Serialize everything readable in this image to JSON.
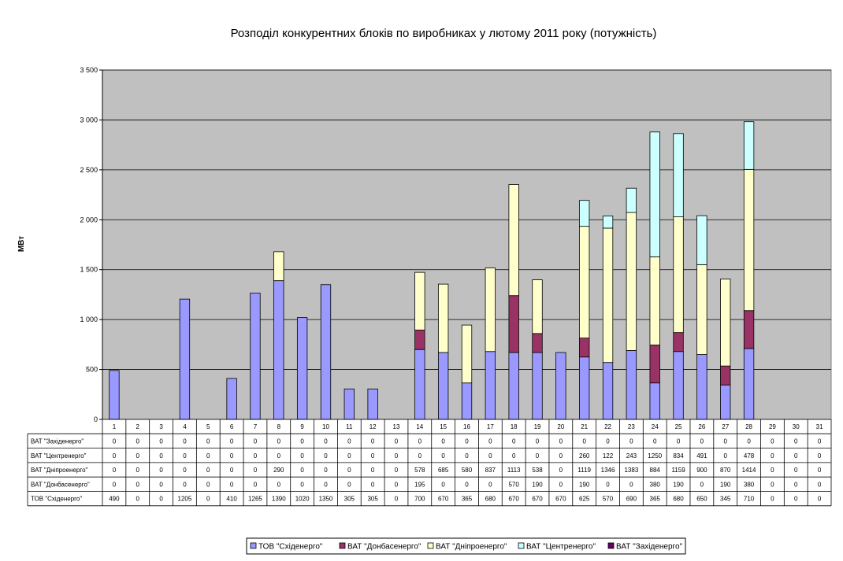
{
  "chart_data": {
    "type": "bar",
    "stacked": true,
    "title": "Розподіл конкурентних блоків по виробниках у лютому 2011 року (потужність)",
    "ylabel": "МВт",
    "ylim": [
      0,
      3500
    ],
    "yticks": [
      0,
      500,
      1000,
      1500,
      2000,
      2500,
      3000,
      3500
    ],
    "ytick_labels": [
      "0",
      "500",
      "1 000",
      "1 500",
      "2 000",
      "2 500",
      "3 000",
      "3 500"
    ],
    "grid": true,
    "legend_position": "bottom",
    "plot_background": "#c0c0c0",
    "categories": [
      "1",
      "2",
      "3",
      "4",
      "5",
      "6",
      "7",
      "8",
      "9",
      "10",
      "11",
      "12",
      "13",
      "14",
      "15",
      "16",
      "17",
      "18",
      "19",
      "20",
      "21",
      "22",
      "23",
      "24",
      "25",
      "26",
      "27",
      "28",
      "29",
      "30",
      "31"
    ],
    "series": [
      {
        "name": "ТОВ \"Східенерго\"",
        "color": "#9999ff",
        "values": [
          490,
          0,
          0,
          1205,
          0,
          410,
          1265,
          1390,
          1020,
          1350,
          305,
          305,
          0,
          700,
          670,
          365,
          680,
          670,
          670,
          670,
          625,
          570,
          690,
          365,
          680,
          650,
          345,
          710,
          0,
          0,
          0
        ]
      },
      {
        "name": "ВАТ \"Донбасенерго\"",
        "color": "#993366",
        "values": [
          0,
          0,
          0,
          0,
          0,
          0,
          0,
          0,
          0,
          0,
          0,
          0,
          0,
          195,
          0,
          0,
          0,
          570,
          190,
          0,
          190,
          0,
          0,
          380,
          190,
          0,
          190,
          380,
          0,
          0,
          0
        ]
      },
      {
        "name": "ВАТ \"Дніпроенерго\"",
        "color": "#ffffcc",
        "values": [
          0,
          0,
          0,
          0,
          0,
          0,
          0,
          290,
          0,
          0,
          0,
          0,
          0,
          578,
          685,
          580,
          837,
          1113,
          538,
          0,
          1119,
          1346,
          1383,
          884,
          1159,
          900,
          870,
          1414,
          0,
          0,
          0
        ]
      },
      {
        "name": "ВАТ \"Центренерго\"",
        "color": "#ccffff",
        "values": [
          0,
          0,
          0,
          0,
          0,
          0,
          0,
          0,
          0,
          0,
          0,
          0,
          0,
          0,
          0,
          0,
          0,
          0,
          0,
          0,
          260,
          122,
          243,
          1250,
          834,
          491,
          0,
          478,
          0,
          0,
          0
        ]
      },
      {
        "name": "ВАТ \"Західенерго\"",
        "color": "#660066",
        "values": [
          0,
          0,
          0,
          0,
          0,
          0,
          0,
          0,
          0,
          0,
          0,
          0,
          0,
          0,
          0,
          0,
          0,
          0,
          0,
          0,
          0,
          0,
          0,
          0,
          0,
          0,
          0,
          0,
          0,
          0,
          0
        ]
      }
    ]
  }
}
